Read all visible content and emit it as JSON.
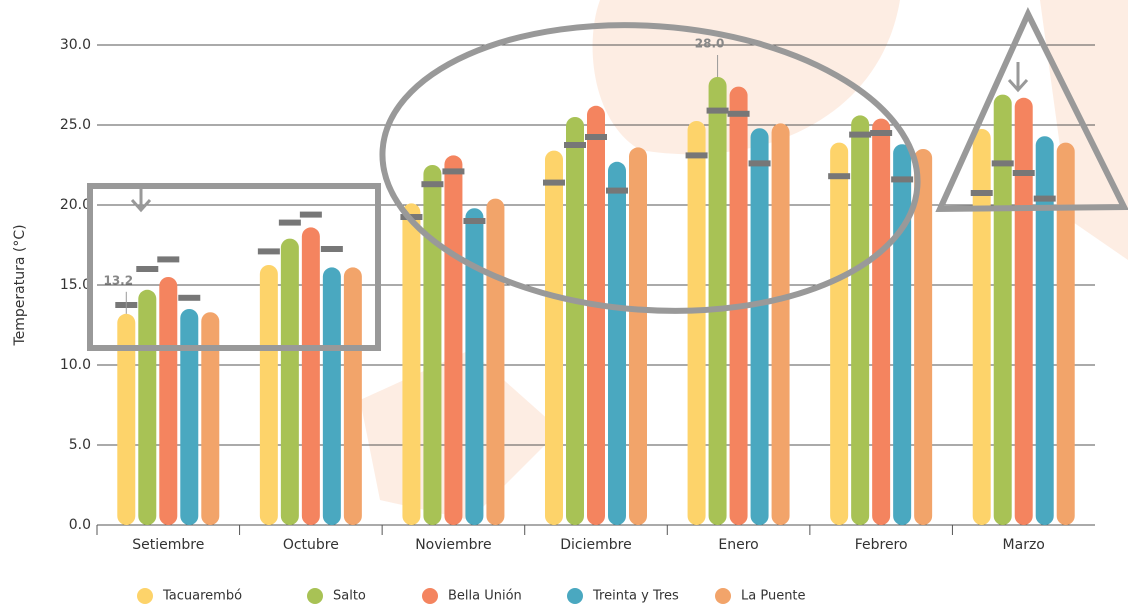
{
  "chart_data": {
    "type": "bar",
    "y_label": "Temperatura (°C)",
    "categories": [
      "Setiembre",
      "Octubre",
      "Noviembre",
      "Diciembre",
      "Enero",
      "Febrero",
      "Marzo"
    ],
    "series": [
      {
        "name": "Tacuarembó",
        "color": "#fdd36a",
        "values": [
          13.2,
          16.25,
          20.1,
          23.4,
          25.25,
          23.9,
          24.75
        ],
        "value_labels": [
          "13.2",
          null,
          null,
          null,
          null,
          null,
          null
        ],
        "marks": [
          13.75,
          17.1,
          19.25,
          21.4,
          23.1,
          21.8,
          20.75
        ]
      },
      {
        "name": "Salto",
        "color": "#a8c255",
        "values": [
          14.7,
          17.9,
          22.5,
          25.5,
          28.0,
          25.6,
          26.9
        ],
        "value_labels": [
          null,
          null,
          null,
          null,
          "28.0",
          null,
          null
        ],
        "marks": [
          16.0,
          18.9,
          21.3,
          23.75,
          25.9,
          24.4,
          22.6
        ]
      },
      {
        "name": "Bella Unión",
        "color": "#f4845f",
        "values": [
          15.5,
          18.6,
          23.1,
          26.2,
          27.4,
          25.4,
          26.7
        ],
        "marks": [
          16.6,
          19.4,
          22.1,
          24.25,
          25.7,
          24.5,
          22.0
        ]
      },
      {
        "name": "Treinta y Tres",
        "color": "#4aa8c0",
        "values": [
          13.5,
          16.1,
          19.8,
          22.7,
          24.8,
          23.8,
          24.3
        ],
        "marks": [
          14.2,
          17.25,
          19.0,
          20.9,
          22.6,
          21.6,
          20.4
        ]
      },
      {
        "name": "La Puente",
        "color": "#f2a46a",
        "values": [
          13.3,
          16.1,
          20.4,
          23.6,
          25.1,
          23.5,
          23.9
        ]
      }
    ],
    "mark_color": "#777777",
    "ylim": [
      0,
      30
    ],
    "yticks": [
      {
        "value": 0,
        "label": "0.0"
      },
      {
        "value": 5,
        "label": "5.0"
      },
      {
        "value": 10,
        "label": "10.0"
      },
      {
        "value": 15,
        "label": "15.0"
      },
      {
        "value": 20,
        "label": "20.0"
      },
      {
        "value": 25,
        "label": "25.0"
      },
      {
        "value": 30,
        "label": "30.0"
      }
    ],
    "grid": true
  }
}
